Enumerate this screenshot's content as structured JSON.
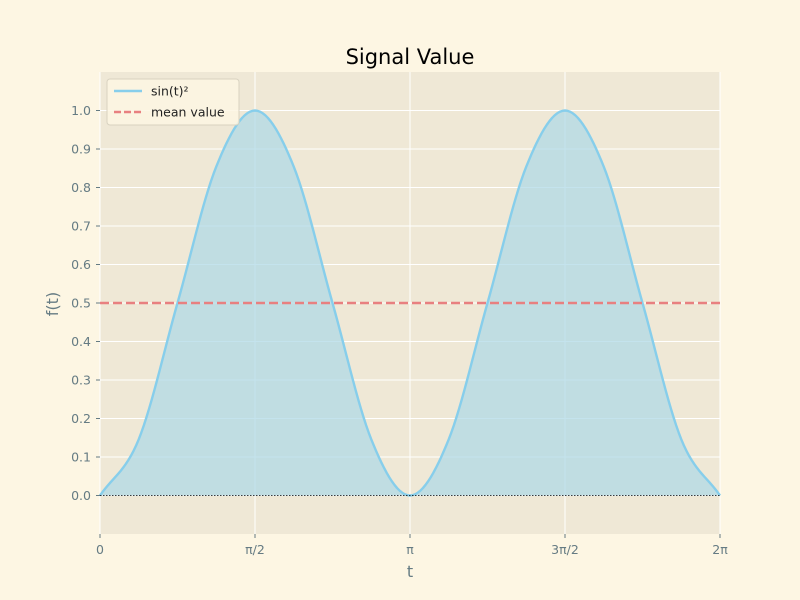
{
  "chart_data": {
    "type": "area",
    "title": "Signal Value",
    "xlabel": "t",
    "ylabel": "f(t)",
    "xlim": [
      0,
      6.283185307
    ],
    "ylim": [
      -0.1,
      1.1
    ],
    "grid": true,
    "legend_position": "top-left",
    "x_ticks": [
      {
        "value": 0,
        "label": "0"
      },
      {
        "value": 1.570796327,
        "label": "π/2"
      },
      {
        "value": 3.141592654,
        "label": "π"
      },
      {
        "value": 4.71238898,
        "label": "3π/2"
      },
      {
        "value": 6.283185307,
        "label": "2π"
      }
    ],
    "y_ticks": [
      {
        "value": 0.0,
        "label": "0.0"
      },
      {
        "value": 0.1,
        "label": "0.1"
      },
      {
        "value": 0.2,
        "label": "0.2"
      },
      {
        "value": 0.3,
        "label": "0.3"
      },
      {
        "value": 0.4,
        "label": "0.4"
      },
      {
        "value": 0.5,
        "label": "0.5"
      },
      {
        "value": 0.6,
        "label": "0.6"
      },
      {
        "value": 0.7,
        "label": "0.7"
      },
      {
        "value": 0.8,
        "label": "0.8"
      },
      {
        "value": 0.9,
        "label": "0.9"
      },
      {
        "value": 1.0,
        "label": "1.0"
      }
    ],
    "series": [
      {
        "name": "sin(t)²",
        "style": "solid",
        "fill": true,
        "color": "#87ceeb",
        "fill_color": "#add8e6",
        "x": [
          0,
          0.3927,
          0.7854,
          1.1781,
          1.5708,
          1.9635,
          2.3562,
          2.7489,
          3.1416,
          3.5343,
          3.927,
          4.3197,
          4.7124,
          5.1051,
          5.4978,
          5.8905,
          6.2832
        ],
        "y": [
          0.0,
          0.146,
          0.5,
          0.854,
          1.0,
          0.854,
          0.5,
          0.146,
          0.0,
          0.146,
          0.5,
          0.854,
          1.0,
          0.854,
          0.5,
          0.146,
          0.0
        ]
      },
      {
        "name": "mean value",
        "style": "dashed",
        "fill": false,
        "color": "#e88080",
        "x": [
          0,
          6.2832
        ],
        "y": [
          0.5,
          0.5
        ]
      }
    ],
    "colors": {
      "figure_bg": "#fdf6e3",
      "axes_bg": "#efe8d6",
      "grid": "#ffffff",
      "text": "#657b83",
      "title": "#000000",
      "baseline": "#000000"
    }
  }
}
